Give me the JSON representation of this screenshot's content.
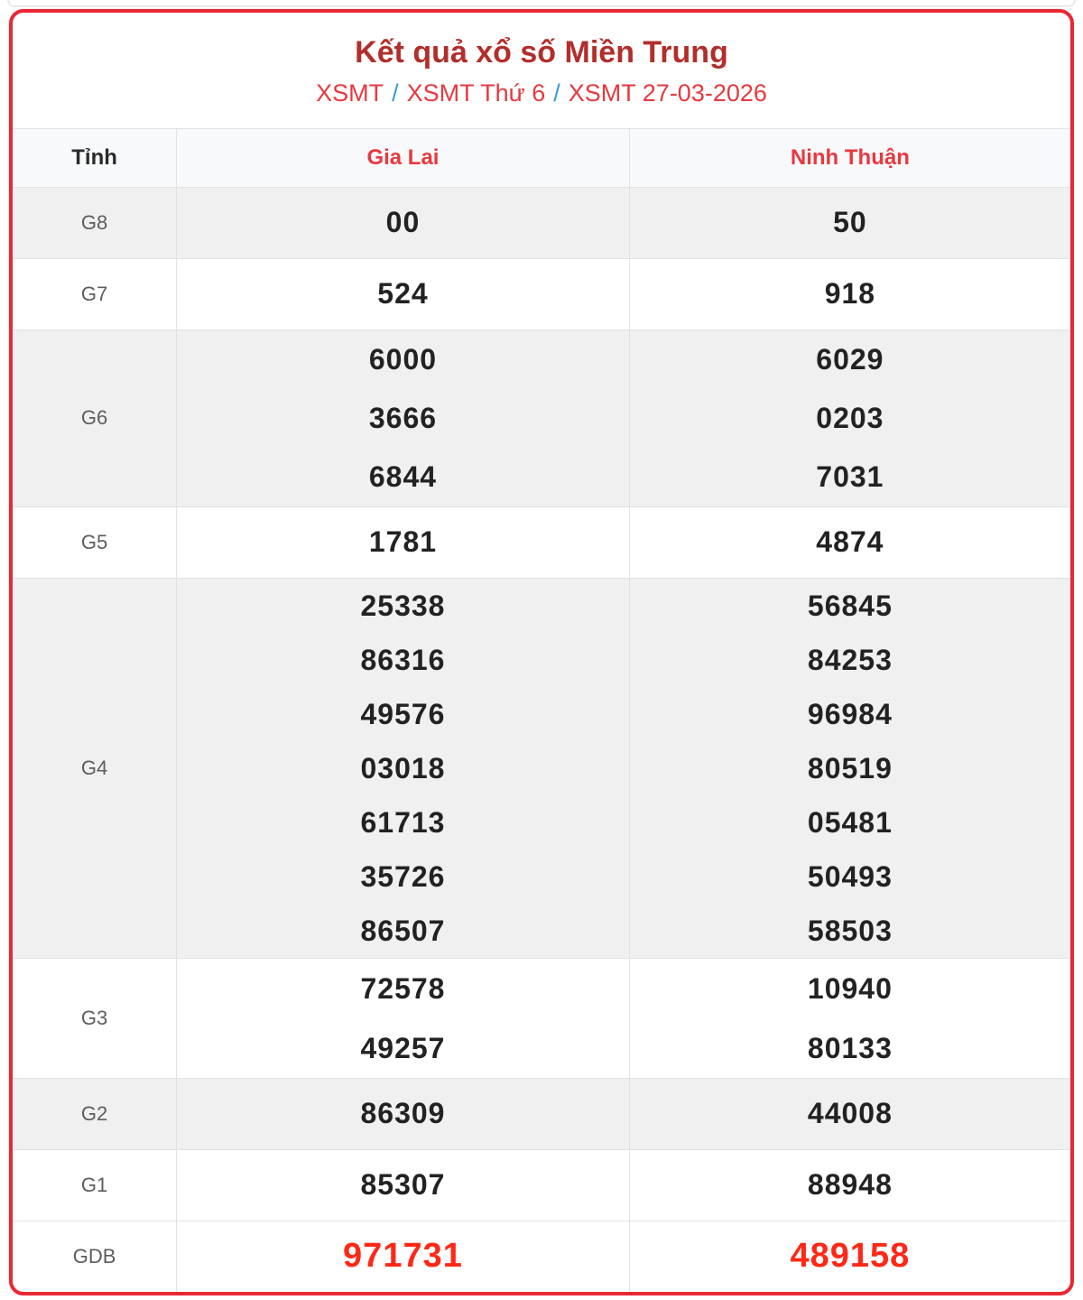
{
  "page": {
    "title": "Kết quả xổ số Miền Trung",
    "subtitle": {
      "links": [
        "XSMT",
        "XSMT Thứ 6",
        "XSMT 27-03-2026"
      ],
      "separator": "/"
    }
  },
  "table": {
    "corner_header": "Tỉnh",
    "province_headers": [
      "Gia Lai",
      "Ninh Thuận"
    ],
    "rows": [
      {
        "prize": "G8",
        "values": [
          [
            "00"
          ],
          [
            "50"
          ]
        ]
      },
      {
        "prize": "G7",
        "values": [
          [
            "524"
          ],
          [
            "918"
          ]
        ]
      },
      {
        "prize": "G6",
        "values": [
          [
            "6000",
            "3666",
            "6844"
          ],
          [
            "6029",
            "0203",
            "7031"
          ]
        ]
      },
      {
        "prize": "G5",
        "values": [
          [
            "1781"
          ],
          [
            "4874"
          ]
        ]
      },
      {
        "prize": "G4",
        "values": [
          [
            "25338",
            "86316",
            "49576",
            "03018",
            "61713",
            "35726",
            "86507"
          ],
          [
            "56845",
            "84253",
            "96984",
            "80519",
            "05481",
            "50493",
            "58503"
          ]
        ]
      },
      {
        "prize": "G3",
        "values": [
          [
            "72578",
            "49257"
          ],
          [
            "10940",
            "80133"
          ]
        ]
      },
      {
        "prize": "G2",
        "values": [
          [
            "86309"
          ],
          [
            "44008"
          ]
        ]
      },
      {
        "prize": "G1",
        "values": [
          [
            "85307"
          ],
          [
            "88948"
          ]
        ]
      },
      {
        "prize": "GDB",
        "values": [
          [
            "971731"
          ],
          [
            "489158"
          ]
        ]
      }
    ]
  },
  "colors": {
    "card_border": "#ea2733",
    "title": "#b22e2b",
    "subtitle_link": "#e6393f",
    "subtitle_sep": "#3b97d3",
    "province_header": "#e6393f",
    "number": "#222222",
    "gdb_number": "#ff2817",
    "shaded_bg": "#f0f0f0",
    "header_bg": "#f8f9fa",
    "line": "#e2e2e2"
  }
}
